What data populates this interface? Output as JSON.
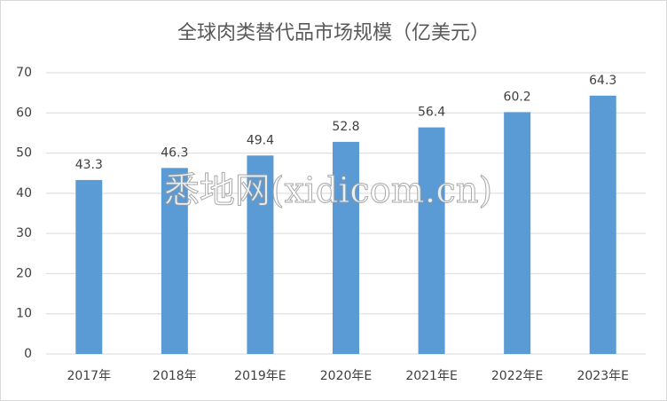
{
  "chart_data": {
    "type": "bar",
    "title": "全球肉类替代品市场规模（亿美元）",
    "categories": [
      "2017年",
      "2018年",
      "2019年E",
      "2020年E",
      "2021年E",
      "2022年E",
      "2023年E"
    ],
    "values": [
      43.3,
      46.3,
      49.4,
      52.8,
      56.4,
      60.2,
      64.3
    ],
    "color": "#5b9bd5",
    "ylim": [
      0,
      70
    ],
    "yticks": [
      0,
      10,
      20,
      30,
      40,
      50,
      60,
      70
    ],
    "grid": true,
    "watermark": "悉地网(xidicom.cn)"
  }
}
